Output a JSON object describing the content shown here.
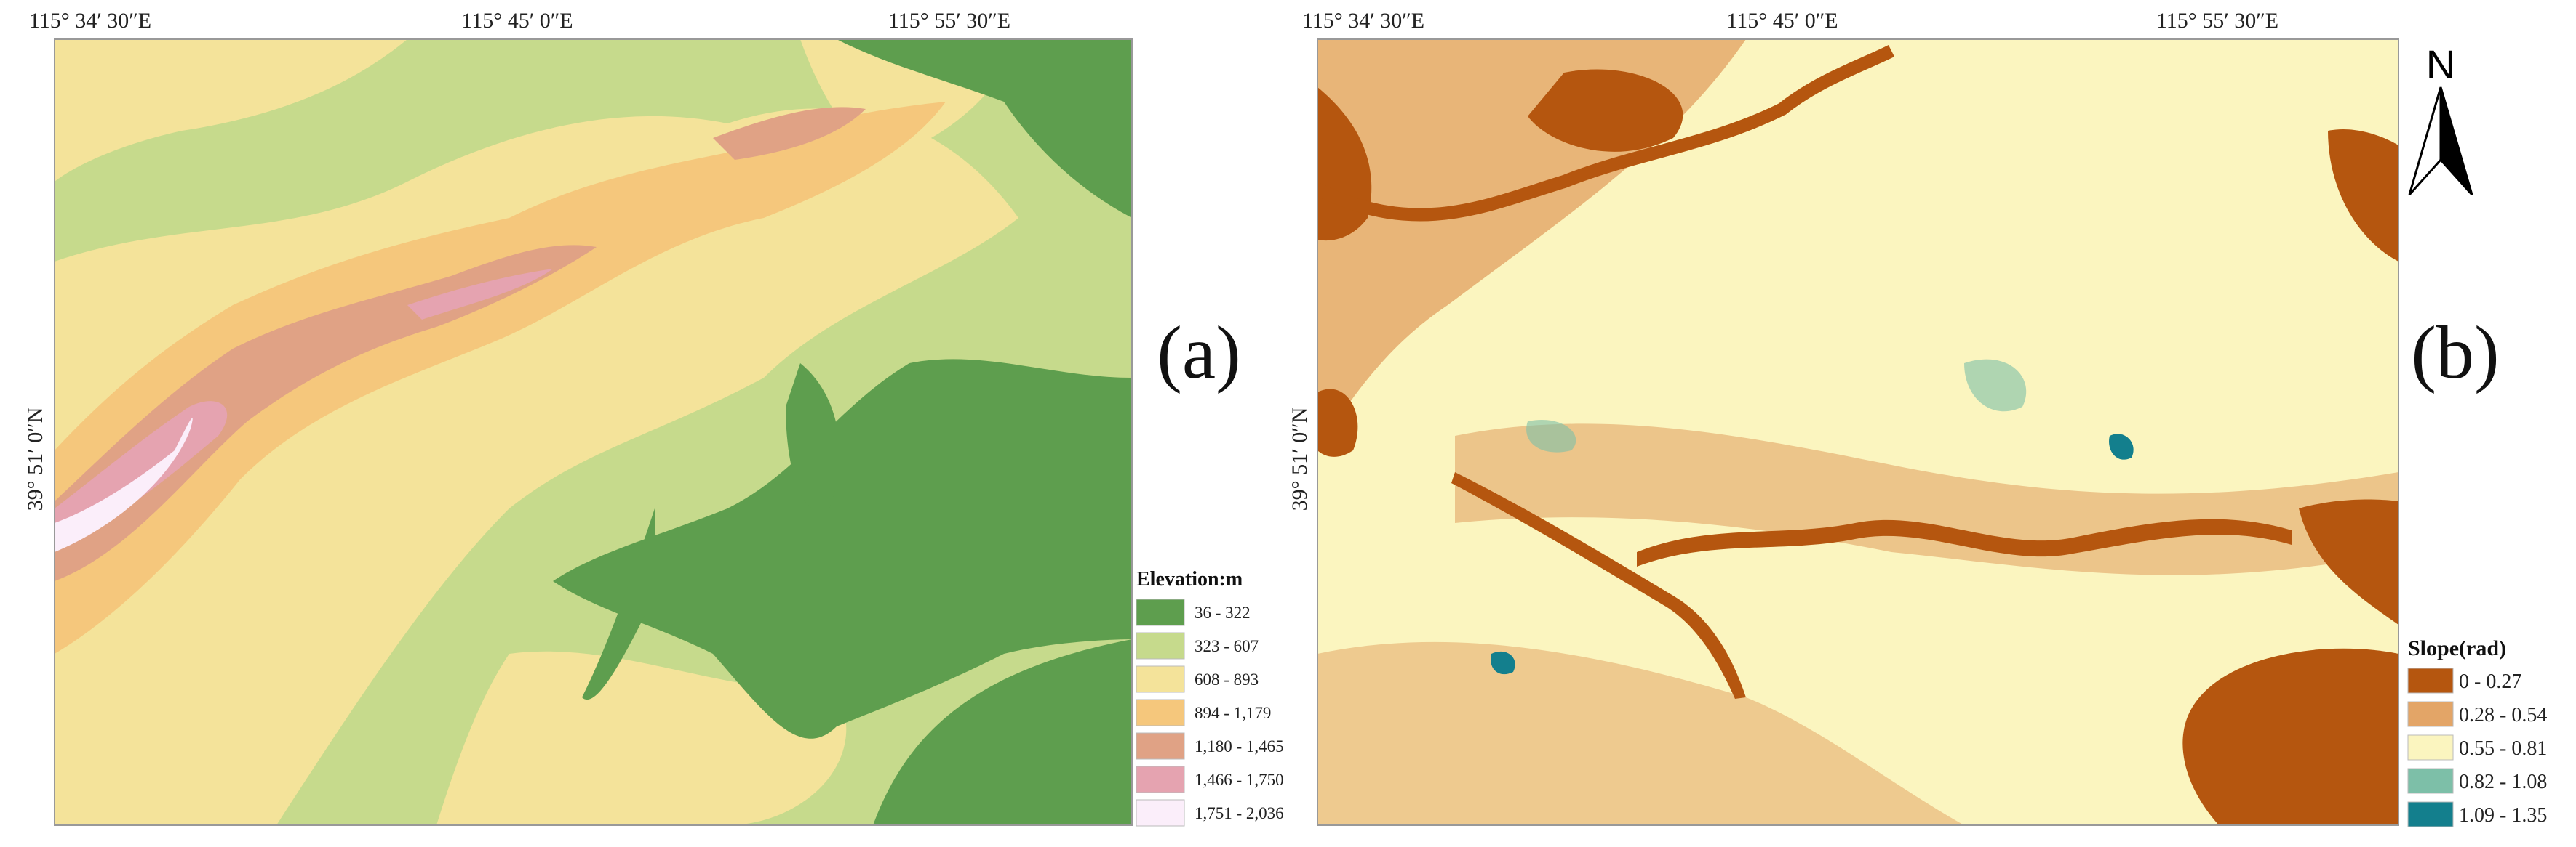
{
  "panels": [
    {
      "label": "(a)",
      "x_labels": [
        "115°  34′ 30″E",
        "115°  45′ 0″E",
        "115°  55′ 30″E"
      ],
      "y_label": "39°  51′ 0″N",
      "legend": {
        "title": "Elevation:m",
        "items": [
          {
            "label": "36 - 322",
            "color": "#5e9e4e"
          },
          {
            "label": "323 - 607",
            "color": "#c6da8c"
          },
          {
            "label": "608 - 893",
            "color": "#f4e39a"
          },
          {
            "label": "894 - 1,179",
            "color": "#f5c77c"
          },
          {
            "label": "1,180 - 1,465",
            "color": "#e0a285"
          },
          {
            "label": "1,466 - 1,750",
            "color": "#e5a3b0"
          },
          {
            "label": "1,751 - 2,036",
            "color": "#fbeefa"
          }
        ]
      }
    },
    {
      "label": "(b)",
      "x_labels": [
        "115°  34′ 30″E",
        "115°  45′ 0″E",
        "115°  55′ 30″E"
      ],
      "y_label": "39°  51′ 0″N",
      "north": "N",
      "legend": {
        "title": "Slope(rad)",
        "items": [
          {
            "label": "0 - 0.27",
            "color": "#b5560f"
          },
          {
            "label": "0.28 - 0.54",
            "color": "#e3a567"
          },
          {
            "label": "0.55 - 0.81",
            "color": "#fbf5bf"
          },
          {
            "label": "0.82 - 1.08",
            "color": "#7dbfa8"
          },
          {
            "label": "1.09 - 1.35",
            "color": "#137f8d"
          }
        ]
      }
    }
  ]
}
